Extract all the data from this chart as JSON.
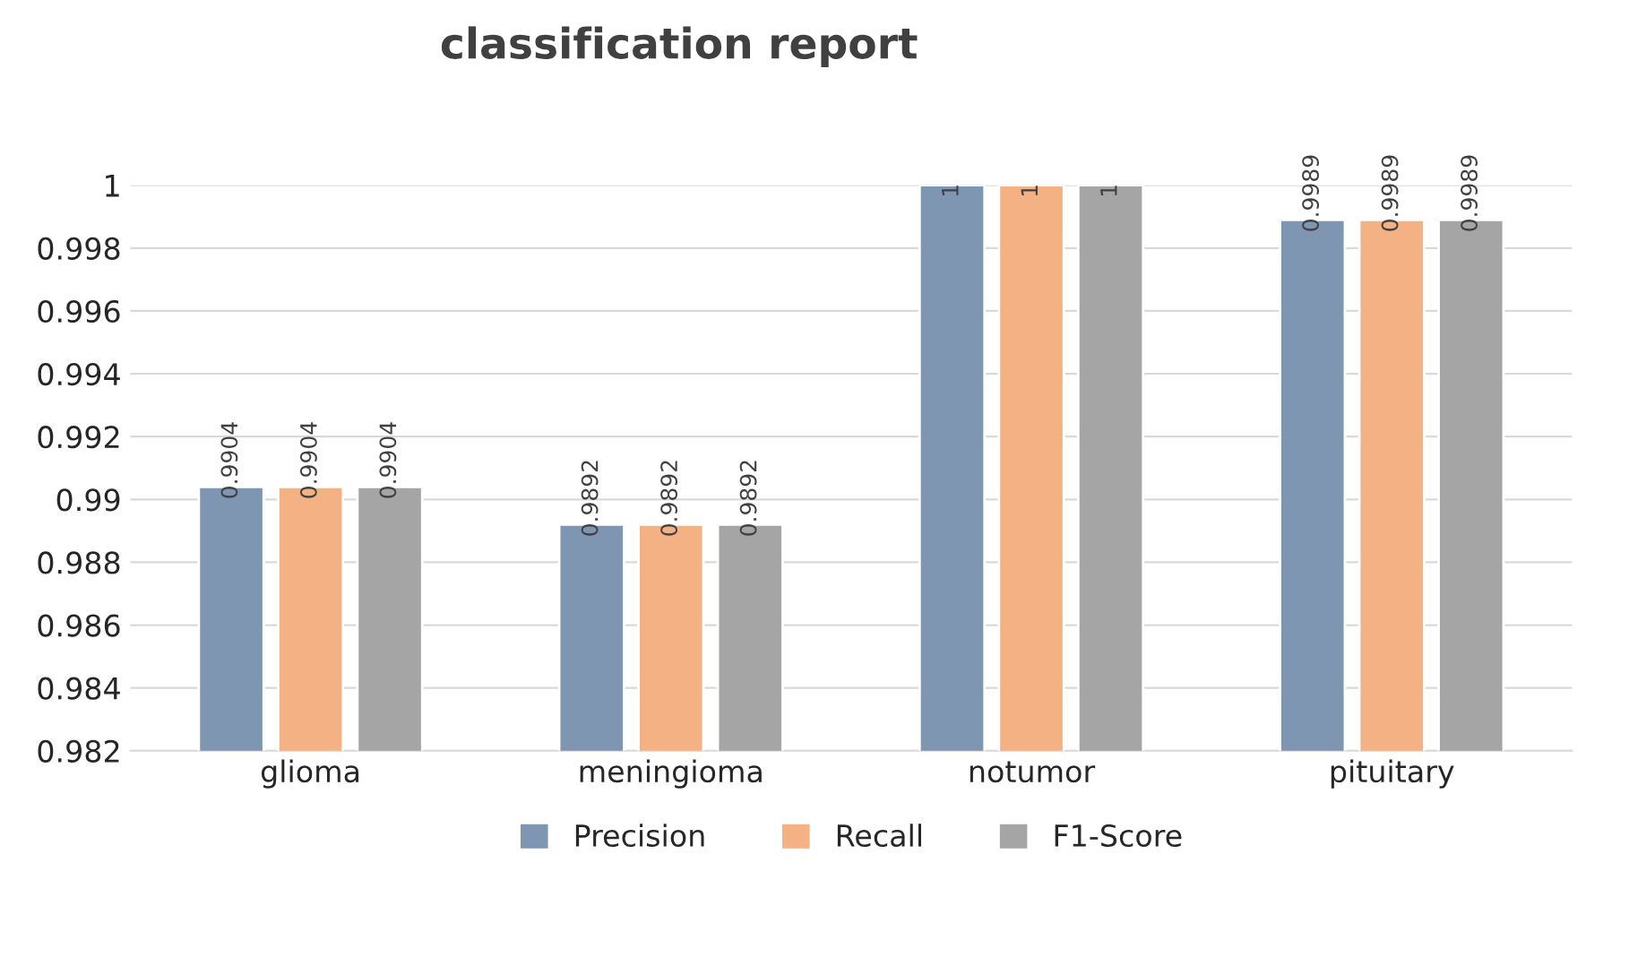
{
  "chart_data": {
    "type": "bar",
    "title": "classification report",
    "categories": [
      "glioma",
      "meningioma",
      "notumor",
      "pituitary"
    ],
    "series": [
      {
        "name": "Precision",
        "color": "#7f96b2",
        "values": [
          0.9904,
          0.9892,
          1,
          0.9989
        ]
      },
      {
        "name": "Recall",
        "color": "#f4b183",
        "values": [
          0.9904,
          0.9892,
          1,
          0.9989
        ]
      },
      {
        "name": "F1-Score",
        "color": "#a5a5a5",
        "values": [
          0.9904,
          0.9892,
          1,
          0.9989
        ]
      }
    ],
    "ylim": [
      0.982,
      1
    ],
    "yticks": [
      0.982,
      0.984,
      0.986,
      0.988,
      0.99,
      0.992,
      0.994,
      0.996,
      0.998,
      1
    ],
    "grid": "y",
    "legend": "bottom",
    "data_labels": true
  }
}
